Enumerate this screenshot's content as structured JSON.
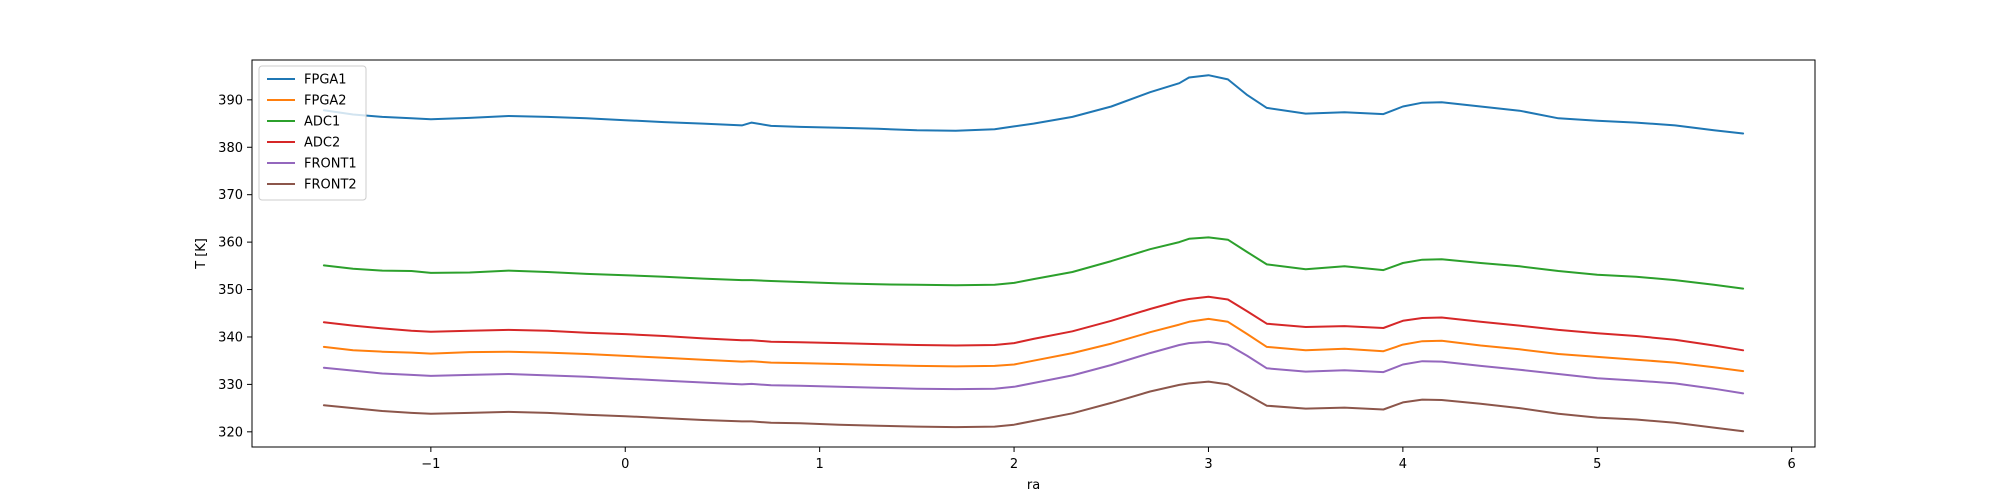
{
  "chart_data": {
    "type": "line",
    "xlabel": "ra",
    "ylabel": "T [K]",
    "xlim": [
      -1.92,
      6.12
    ],
    "ylim": [
      316.8,
      398.4
    ],
    "xticks": [
      -1,
      0,
      1,
      2,
      3,
      4,
      5,
      6
    ],
    "xtick_labels": [
      "−1",
      "0",
      "1",
      "2",
      "3",
      "4",
      "5",
      "6"
    ],
    "yticks": [
      320,
      330,
      340,
      350,
      360,
      370,
      380,
      390
    ],
    "ytick_labels": [
      "320",
      "330",
      "340",
      "350",
      "360",
      "370",
      "380",
      "390"
    ],
    "grid": false,
    "legend_position": "upper left",
    "x": [
      -1.55,
      -1.4,
      -1.25,
      -1.1,
      -1.0,
      -0.8,
      -0.6,
      -0.4,
      -0.2,
      0.0,
      0.2,
      0.4,
      0.6,
      0.65,
      0.75,
      0.9,
      1.1,
      1.3,
      1.5,
      1.7,
      1.9,
      2.0,
      2.1,
      2.3,
      2.5,
      2.7,
      2.85,
      2.9,
      3.0,
      3.1,
      3.2,
      3.3,
      3.5,
      3.7,
      3.9,
      4.0,
      4.1,
      4.2,
      4.4,
      4.6,
      4.8,
      5.0,
      5.2,
      5.4,
      5.6,
      5.75
    ],
    "series": [
      {
        "name": "FPGA1",
        "color": "#1f77b4",
        "values": [
          387.8,
          386.9,
          386.4,
          386.1,
          385.9,
          386.2,
          386.6,
          386.4,
          386.1,
          385.7,
          385.3,
          385.0,
          384.6,
          385.2,
          384.5,
          384.3,
          384.1,
          383.9,
          383.6,
          383.5,
          383.8,
          384.4,
          385.0,
          386.4,
          388.6,
          391.6,
          393.5,
          394.7,
          395.2,
          394.3,
          391.0,
          388.3,
          387.1,
          387.4,
          387.0,
          388.6,
          389.4,
          389.5,
          388.6,
          387.7,
          386.1,
          385.6,
          385.2,
          384.6,
          383.6,
          382.9
        ]
      },
      {
        "name": "FPGA2",
        "color": "#ff7f0e",
        "values": [
          337.9,
          337.2,
          336.9,
          336.7,
          336.5,
          336.8,
          336.9,
          336.7,
          336.4,
          336.0,
          335.6,
          335.2,
          334.8,
          334.9,
          334.6,
          334.5,
          334.3,
          334.1,
          333.9,
          333.8,
          333.9,
          334.2,
          335.0,
          336.6,
          338.6,
          341.0,
          342.6,
          343.2,
          343.8,
          343.2,
          340.6,
          337.9,
          337.2,
          337.5,
          337.0,
          338.4,
          339.1,
          339.2,
          338.2,
          337.4,
          336.4,
          335.8,
          335.2,
          334.6,
          333.6,
          332.8
        ]
      },
      {
        "name": "ADC1",
        "color": "#2ca02c",
        "values": [
          355.1,
          354.4,
          354.0,
          353.9,
          353.5,
          353.6,
          354.0,
          353.7,
          353.3,
          353.0,
          352.7,
          352.3,
          352.0,
          352.0,
          351.8,
          351.6,
          351.3,
          351.1,
          351.0,
          350.9,
          351.0,
          351.4,
          352.2,
          353.7,
          356.0,
          358.5,
          360.0,
          360.7,
          361.0,
          360.5,
          357.9,
          355.3,
          354.3,
          354.9,
          354.1,
          355.6,
          356.3,
          356.4,
          355.6,
          354.9,
          353.9,
          353.1,
          352.7,
          352.0,
          351.0,
          350.2
        ]
      },
      {
        "name": "ADC2",
        "color": "#d62728",
        "values": [
          343.1,
          342.4,
          341.8,
          341.3,
          341.1,
          341.3,
          341.5,
          341.3,
          340.9,
          340.6,
          340.2,
          339.7,
          339.3,
          339.3,
          339.0,
          338.9,
          338.7,
          338.5,
          338.3,
          338.2,
          338.3,
          338.7,
          339.6,
          341.2,
          343.4,
          345.9,
          347.6,
          348.0,
          348.5,
          347.9,
          345.4,
          342.8,
          342.1,
          342.3,
          341.9,
          343.4,
          344.0,
          344.1,
          343.2,
          342.4,
          341.5,
          340.8,
          340.2,
          339.4,
          338.2,
          337.2
        ]
      },
      {
        "name": "FRONT1",
        "color": "#9467bd",
        "values": [
          333.5,
          332.9,
          332.3,
          332.0,
          331.8,
          332.0,
          332.2,
          331.9,
          331.6,
          331.2,
          330.8,
          330.4,
          330.0,
          330.1,
          329.8,
          329.7,
          329.5,
          329.3,
          329.1,
          329.0,
          329.1,
          329.5,
          330.3,
          331.9,
          334.1,
          336.6,
          338.3,
          338.7,
          339.0,
          338.4,
          336.0,
          333.4,
          332.7,
          333.0,
          332.6,
          334.2,
          334.9,
          334.8,
          333.9,
          333.1,
          332.2,
          331.3,
          330.8,
          330.2,
          329.1,
          328.1
        ]
      },
      {
        "name": "FRONT2",
        "color": "#8c564b",
        "values": [
          325.6,
          325.0,
          324.4,
          324.0,
          323.8,
          324.0,
          324.2,
          324.0,
          323.6,
          323.3,
          322.9,
          322.5,
          322.2,
          322.2,
          321.9,
          321.8,
          321.5,
          321.3,
          321.1,
          321.0,
          321.1,
          321.5,
          322.3,
          323.9,
          326.1,
          328.5,
          329.9,
          330.2,
          330.6,
          330.0,
          327.8,
          325.5,
          324.9,
          325.1,
          324.7,
          326.2,
          326.8,
          326.7,
          325.9,
          325.0,
          323.8,
          323.0,
          322.6,
          321.9,
          320.9,
          320.1
        ]
      }
    ]
  }
}
